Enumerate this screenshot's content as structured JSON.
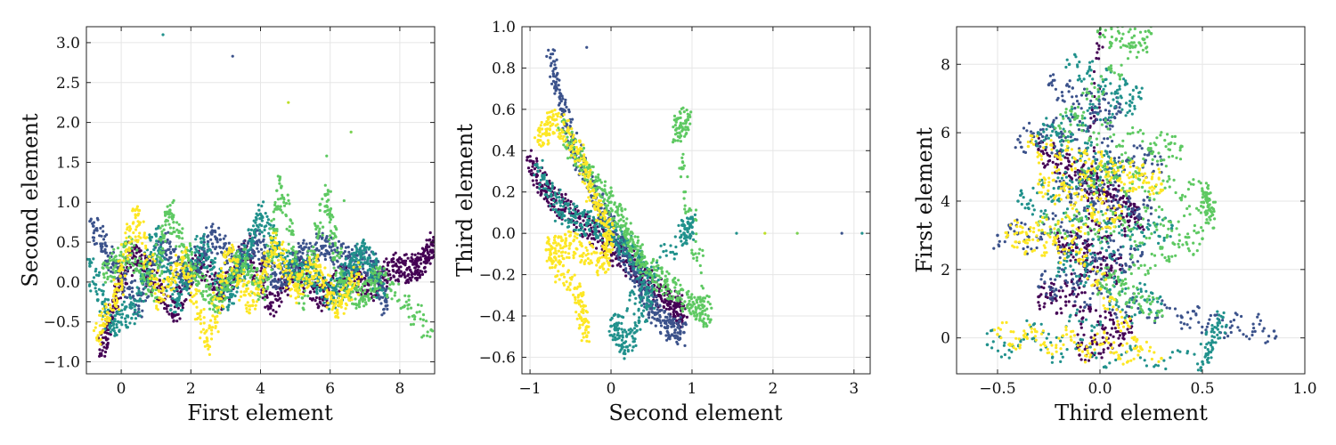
{
  "palette": [
    "#440154",
    "#3b528b",
    "#21918c",
    "#5ec962",
    "#fde725"
  ],
  "chart_data": [
    {
      "type": "scatter",
      "title": "",
      "xlabel": "First element",
      "ylabel": "Second element",
      "xlim": [
        -1.0,
        9.0
      ],
      "ylim": [
        -1.15,
        3.2
      ],
      "xticks": [
        0,
        2,
        4,
        6,
        8
      ],
      "xtick_labels": [
        "0",
        "2",
        "4",
        "6",
        "8"
      ],
      "yticks": [
        -1.0,
        -0.5,
        0.0,
        0.5,
        1.0,
        1.5,
        2.0,
        2.5,
        3.0
      ],
      "ytick_labels": [
        "−1.0",
        "−0.5",
        "0.0",
        "0.5",
        "1.0",
        "1.5",
        "2.0",
        "2.5",
        "3.0"
      ],
      "grid": true,
      "colormap": "viridis",
      "outliers": [
        {
          "x": 1.2,
          "y": 3.1,
          "color": "#21918c"
        },
        {
          "x": 3.2,
          "y": 2.83,
          "color": "#3b528b"
        },
        {
          "x": 4.8,
          "y": 2.25,
          "color": "#bddf26"
        },
        {
          "x": 6.6,
          "y": 1.88,
          "color": "#7ad151"
        },
        {
          "x": 5.9,
          "y": 1.58,
          "color": "#5ec962"
        },
        {
          "x": 6.4,
          "y": 1.02,
          "color": "#5ec962"
        }
      ],
      "series": [
        {
          "color": "#440154",
          "points": [
            [
              -0.6,
              -0.9
            ],
            [
              -0.2,
              -0.3
            ],
            [
              0.3,
              0.4
            ],
            [
              0.8,
              0.1
            ],
            [
              1.5,
              -0.4
            ],
            [
              2.2,
              0.3
            ],
            [
              2.9,
              -0.2
            ],
            [
              3.6,
              0.45
            ],
            [
              4.3,
              -0.3
            ],
            [
              5.0,
              0.2
            ],
            [
              5.7,
              -0.2
            ],
            [
              6.4,
              0.1
            ],
            [
              7.2,
              -0.1
            ],
            [
              7.8,
              0.2
            ],
            [
              8.3,
              0.15
            ],
            [
              8.7,
              0.25
            ],
            [
              9.0,
              0.5
            ]
          ]
        },
        {
          "color": "#3b528b",
          "points": [
            [
              -0.8,
              0.7
            ],
            [
              -0.2,
              0.2
            ],
            [
              0.5,
              -0.3
            ],
            [
              1.2,
              0.5
            ],
            [
              1.9,
              0.0
            ],
            [
              2.6,
              0.6
            ],
            [
              3.3,
              0.2
            ],
            [
              3.9,
              0.5
            ],
            [
              4.5,
              0.0
            ],
            [
              5.1,
              0.3
            ],
            [
              5.8,
              0.45
            ],
            [
              6.5,
              0.3
            ],
            [
              7.3,
              0.2
            ],
            [
              7.6,
              -0.3
            ]
          ]
        },
        {
          "color": "#21918c",
          "points": [
            [
              -0.9,
              0.2
            ],
            [
              -0.3,
              -0.55
            ],
            [
              0.4,
              -0.35
            ],
            [
              1.0,
              0.6
            ],
            [
              1.6,
              -0.3
            ],
            [
              2.3,
              0.5
            ],
            [
              3.0,
              -0.2
            ],
            [
              3.5,
              0.2
            ],
            [
              4.0,
              0.85
            ],
            [
              4.7,
              0.2
            ],
            [
              5.4,
              0.1
            ],
            [
              6.1,
              -0.2
            ],
            [
              6.6,
              0.2
            ],
            [
              7.0,
              0.4
            ],
            [
              7.5,
              -0.1
            ]
          ]
        },
        {
          "color": "#5ec962",
          "points": [
            [
              -0.5,
              0.1
            ],
            [
              0.2,
              0.4
            ],
            [
              0.9,
              -0.1
            ],
            [
              1.4,
              0.9
            ],
            [
              2.0,
              0.2
            ],
            [
              2.7,
              -0.3
            ],
            [
              3.4,
              0.3
            ],
            [
              4.1,
              -0.1
            ],
            [
              4.6,
              1.2
            ],
            [
              5.2,
              -0.2
            ],
            [
              5.9,
              1.1
            ],
            [
              6.3,
              0.0
            ],
            [
              6.9,
              -0.2
            ],
            [
              7.4,
              0.1
            ],
            [
              8.9,
              -0.6
            ]
          ]
        },
        {
          "color": "#fde725",
          "points": [
            [
              -0.7,
              -0.7
            ],
            [
              -0.1,
              -0.1
            ],
            [
              0.4,
              0.9
            ],
            [
              1.1,
              -0.2
            ],
            [
              1.8,
              0.3
            ],
            [
              2.5,
              -0.8
            ],
            [
              3.1,
              0.4
            ],
            [
              3.7,
              -0.3
            ],
            [
              4.4,
              0.5
            ],
            [
              5.0,
              -0.1
            ],
            [
              5.6,
              0.2
            ],
            [
              6.2,
              -0.35
            ],
            [
              6.8,
              0.1
            ]
          ]
        }
      ]
    },
    {
      "type": "scatter",
      "title": "",
      "xlabel": "Second element",
      "ylabel": "Third element",
      "xlim": [
        -1.1,
        3.2
      ],
      "ylim": [
        -0.68,
        1.0
      ],
      "xticks": [
        -1,
        0,
        1,
        2,
        3
      ],
      "xtick_labels": [
        "−1",
        "0",
        "1",
        "2",
        "3"
      ],
      "yticks": [
        -0.6,
        -0.4,
        -0.2,
        0.0,
        0.2,
        0.4,
        0.6,
        0.8,
        1.0
      ],
      "ytick_labels": [
        "−0.6",
        "−0.4",
        "−0.2",
        "0.0",
        "0.2",
        "0.4",
        "0.6",
        "0.8",
        "1.0"
      ],
      "grid": true,
      "colormap": "viridis",
      "outliers": [
        {
          "x": -0.3,
          "y": 0.9,
          "color": "#3b528b"
        },
        {
          "x": 1.55,
          "y": 0.0,
          "color": "#21918c"
        },
        {
          "x": 1.9,
          "y": 0.0,
          "color": "#bddf26"
        },
        {
          "x": 2.3,
          "y": 0.0,
          "color": "#7ad151"
        },
        {
          "x": 2.85,
          "y": 0.0,
          "color": "#3b528b"
        },
        {
          "x": 3.1,
          "y": 0.0,
          "color": "#21918c"
        }
      ],
      "series": [
        {
          "color": "#440154",
          "points": [
            [
              -1.0,
              0.35
            ],
            [
              -0.8,
              0.2
            ],
            [
              -0.5,
              0.1
            ],
            [
              -0.2,
              0.0
            ],
            [
              0.1,
              -0.1
            ],
            [
              0.4,
              -0.2
            ],
            [
              0.6,
              -0.3
            ],
            [
              0.8,
              -0.35
            ],
            [
              0.9,
              -0.4
            ]
          ]
        },
        {
          "color": "#3b528b",
          "points": [
            [
              -0.75,
              0.85
            ],
            [
              -0.6,
              0.6
            ],
            [
              -0.4,
              0.35
            ],
            [
              -0.1,
              0.1
            ],
            [
              0.1,
              -0.05
            ],
            [
              0.3,
              -0.2
            ],
            [
              0.5,
              -0.35
            ],
            [
              0.7,
              -0.45
            ],
            [
              0.9,
              -0.48
            ]
          ]
        },
        {
          "color": "#21918c",
          "points": [
            [
              -0.9,
              0.3
            ],
            [
              -0.6,
              0.1
            ],
            [
              -0.3,
              0.05
            ],
            [
              0.0,
              0.0
            ],
            [
              0.3,
              -0.1
            ],
            [
              0.5,
              -0.3
            ],
            [
              0.2,
              -0.55
            ],
            [
              0.0,
              -0.45
            ],
            [
              0.9,
              0.0
            ],
            [
              1.0,
              0.03
            ]
          ]
        },
        {
          "color": "#5ec962",
          "points": [
            [
              -0.6,
              0.5
            ],
            [
              -0.3,
              0.3
            ],
            [
              0.0,
              0.15
            ],
            [
              0.2,
              0.0
            ],
            [
              0.4,
              -0.15
            ],
            [
              0.7,
              -0.25
            ],
            [
              1.0,
              -0.35
            ],
            [
              1.2,
              -0.4
            ],
            [
              0.8,
              0.5
            ],
            [
              0.95,
              0.55
            ]
          ]
        },
        {
          "color": "#fde725",
          "points": [
            [
              -0.9,
              0.45
            ],
            [
              -0.7,
              0.55
            ],
            [
              -0.4,
              0.4
            ],
            [
              -0.2,
              0.15
            ],
            [
              0.0,
              0.0
            ],
            [
              -0.1,
              -0.15
            ],
            [
              -0.5,
              -0.05
            ],
            [
              -0.8,
              -0.08
            ],
            [
              -0.4,
              -0.3
            ],
            [
              -0.3,
              -0.5
            ]
          ]
        }
      ]
    },
    {
      "type": "scatter",
      "title": "",
      "xlabel": "Third element",
      "ylabel": "First element",
      "xlim": [
        -0.7,
        1.0
      ],
      "ylim": [
        -1.05,
        9.1
      ],
      "xticks": [
        -0.5,
        0.0,
        0.5,
        1.0
      ],
      "xtick_labels": [
        "−0.5",
        "0.0",
        "0.5",
        "1.0"
      ],
      "yticks": [
        0,
        2,
        4,
        6,
        8
      ],
      "ytick_labels": [
        "0",
        "2",
        "4",
        "6",
        "8"
      ],
      "grid": true,
      "colormap": "viridis",
      "outliers": [],
      "series": [
        {
          "color": "#440154",
          "points": [
            [
              -0.3,
              5.5
            ],
            [
              -0.1,
              4.8
            ],
            [
              0.05,
              4.2
            ],
            [
              0.2,
              3.5
            ],
            [
              -0.2,
              2.7
            ],
            [
              0.1,
              2.0
            ],
            [
              -0.3,
              1.2
            ],
            [
              0.15,
              0.3
            ],
            [
              -0.1,
              -0.5
            ],
            [
              0.0,
              8.9
            ]
          ]
        },
        {
          "color": "#3b528b",
          "points": [
            [
              -0.25,
              7.4
            ],
            [
              0.1,
              6.6
            ],
            [
              -0.4,
              5.8
            ],
            [
              0.3,
              5.2
            ],
            [
              -0.2,
              4.4
            ],
            [
              0.25,
              3.8
            ],
            [
              -0.5,
              3.0
            ],
            [
              0.2,
              2.4
            ],
            [
              -0.3,
              1.5
            ],
            [
              0.4,
              0.6
            ],
            [
              0.85,
              0.2
            ]
          ]
        },
        {
          "color": "#21918c",
          "points": [
            [
              -0.15,
              8.0
            ],
            [
              0.2,
              7.0
            ],
            [
              -0.3,
              6.0
            ],
            [
              0.1,
              5.0
            ],
            [
              -0.4,
              4.0
            ],
            [
              0.35,
              3.2
            ],
            [
              -0.2,
              2.2
            ],
            [
              0.3,
              1.0
            ],
            [
              -0.55,
              -0.2
            ],
            [
              0.5,
              -0.7
            ],
            [
              0.6,
              0.6
            ]
          ]
        },
        {
          "color": "#5ec962",
          "points": [
            [
              0.0,
              8.8
            ],
            [
              0.25,
              8.9
            ],
            [
              -0.2,
              6.2
            ],
            [
              0.4,
              5.6
            ],
            [
              -0.1,
              4.6
            ],
            [
              0.5,
              4.3
            ],
            [
              0.55,
              3.6
            ],
            [
              -0.3,
              3.3
            ],
            [
              0.5,
              2.9
            ],
            [
              0.0,
              1.6
            ],
            [
              0.3,
              0.8
            ]
          ]
        },
        {
          "color": "#fde725",
          "points": [
            [
              -0.35,
              5.6
            ],
            [
              0.0,
              5.1
            ],
            [
              0.3,
              4.5
            ],
            [
              -0.3,
              4.5
            ],
            [
              0.1,
              3.5
            ],
            [
              -0.45,
              3.0
            ],
            [
              -0.1,
              2.5
            ],
            [
              0.2,
              -0.3
            ],
            [
              -0.5,
              0.1
            ],
            [
              0.3,
              -0.6
            ]
          ]
        }
      ]
    }
  ]
}
